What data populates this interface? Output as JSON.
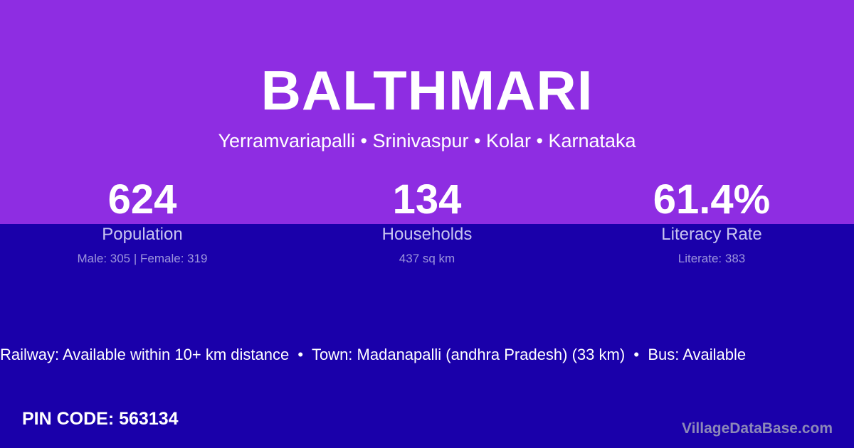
{
  "header": {
    "title": "BALTHMARI",
    "location": "Yerramvariapalli • Srinivaspur • Kolar • Karnataka"
  },
  "stats": [
    {
      "value": "624",
      "label": "Population",
      "detail": "Male: 305 | Female: 319"
    },
    {
      "value": "134",
      "label": "Households",
      "detail": "437 sq km"
    },
    {
      "value": "61.4%",
      "label": "Literacy Rate",
      "detail": "Literate: 383"
    }
  ],
  "ticker": "Railway: Available within 10+ km distance  •  Town: Madanapalli (andhra Pradesh) (33 km)  •  Bus: Available",
  "pin_code": "PIN CODE: 563134",
  "brand": "VillageDataBase.com",
  "colors": {
    "top": "#8e2de2",
    "bottom": "#1a00aa"
  }
}
